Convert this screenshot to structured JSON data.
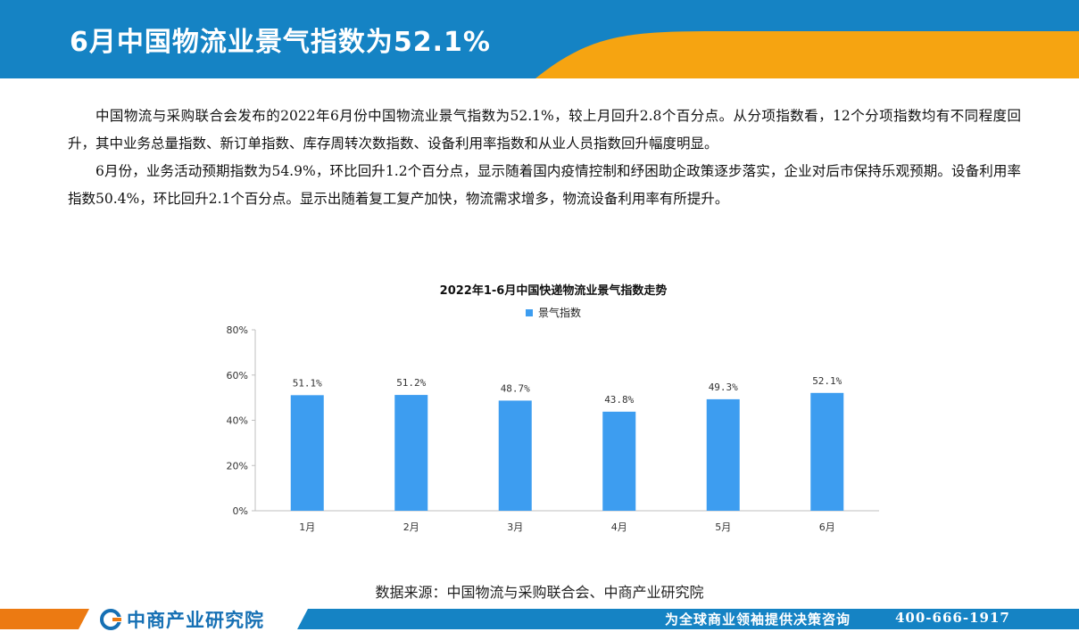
{
  "header": {
    "title": "6月中国物流业景气指数为52.1%"
  },
  "body": {
    "paragraphs": [
      "中国物流与采购联合会发布的2022年6月份中国物流业景气指数为52.1%，较上月回升2.8个百分点。从分项指数看，12个分项指数均有不同程度回升，其中业务总量指数、新订单指数、库存周转次数指数、设备利用率指数和从业人员指数回升幅度明显。",
      "6月份，业务活动预期指数为54.9%，环比回升1.2个百分点，显示随着国内疫情控制和纾困助企政策逐步落实，企业对后市保持乐观预期。设备利用率指数50.4%，环比回升2.1个百分点。显示出随着复工复产加快，物流需求增多，物流设备利用率有所提升。"
    ]
  },
  "chart_data": {
    "type": "bar",
    "title": "2022年1-6月中国快递物流业景气指数走势",
    "categories": [
      "1月",
      "2月",
      "3月",
      "4月",
      "5月",
      "6月"
    ],
    "series": [
      {
        "name": "景气指数",
        "values": [
          51.1,
          51.2,
          48.7,
          43.8,
          49.3,
          52.1
        ],
        "labels": [
          "51.1%",
          "51.2%",
          "48.7%",
          "43.8%",
          "49.3%",
          "52.1%"
        ],
        "color": "#3d9df0"
      }
    ],
    "ylim": [
      0,
      80
    ],
    "yticks": [
      0,
      20,
      40,
      60,
      80
    ],
    "ytick_labels": [
      "0%",
      "20%",
      "40%",
      "60%",
      "80%"
    ],
    "grid": false,
    "legend_position": "top-center"
  },
  "source": {
    "text": "数据来源：中国物流与采购联合会、中商产业研究院"
  },
  "footer": {
    "logo_text": "中商产业研究院",
    "slogan": "为全球商业领袖提供决策咨询",
    "phone": "400-666-1917"
  },
  "colors": {
    "header_blue": "#1583c4",
    "accent_orange": "#f6a411",
    "footer_orange": "#ec7a12",
    "footer_blue": "#1583c4",
    "bar_blue": "#3d9df0"
  },
  "icons": {
    "logo": "company-logo-icon"
  }
}
